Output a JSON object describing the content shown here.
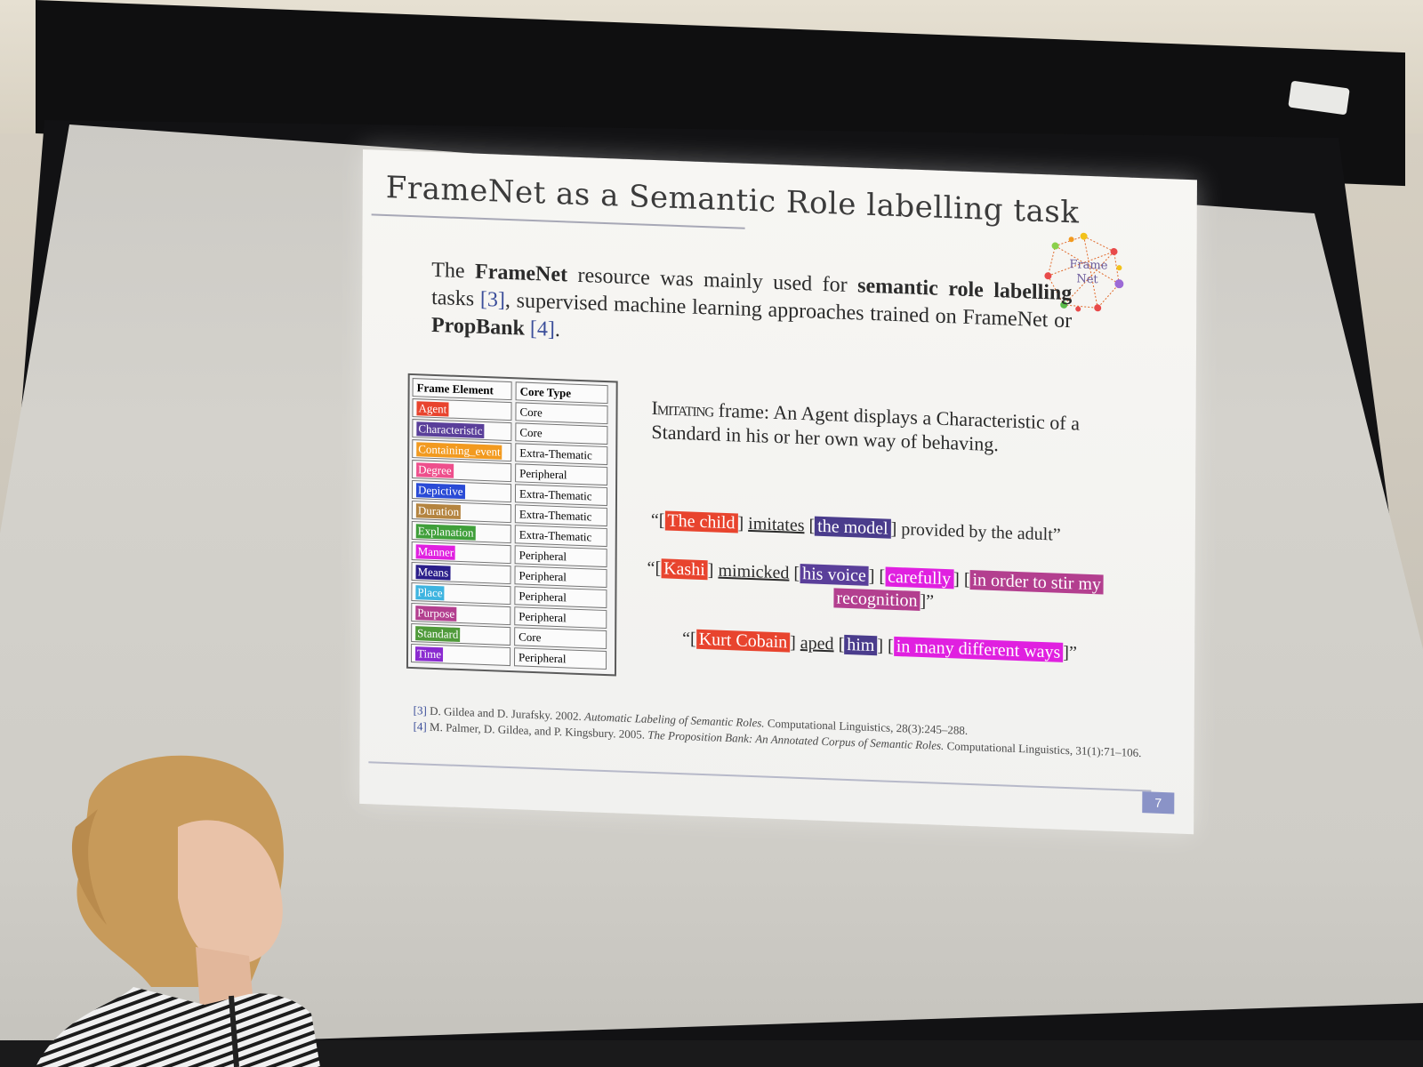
{
  "slide": {
    "title": "FrameNet as a Semantic Role labelling task",
    "logo_text_1": "Frame",
    "logo_text_2": "Net",
    "intro": {
      "t1": "The ",
      "b1": "FrameNet",
      "t2": " resource was mainly used for ",
      "b2": "semantic role labelling",
      "t3": " tasks ",
      "r1": "[3]",
      "t4": ", supervised machine learning approaches trained on FrameNet or ",
      "b3": "PropBank",
      "t5": " ",
      "r2": "[4]",
      "t6": "."
    },
    "table": {
      "headers": [
        "Frame Element",
        "Core Type"
      ],
      "rows": [
        {
          "fe": "Agent",
          "type": "Core",
          "color": "#e8442e"
        },
        {
          "fe": "Characteristic",
          "type": "Core",
          "color": "#5a3f9a"
        },
        {
          "fe": "Containing_event",
          "type": "Extra-Thematic",
          "color": "#f29a1f"
        },
        {
          "fe": "Degree",
          "type": "Peripheral",
          "color": "#ee4f8c"
        },
        {
          "fe": "Depictive",
          "type": "Extra-Thematic",
          "color": "#2a4bd6"
        },
        {
          "fe": "Duration",
          "type": "Extra-Thematic",
          "color": "#b48440"
        },
        {
          "fe": "Explanation",
          "type": "Extra-Thematic",
          "color": "#3f9f3a"
        },
        {
          "fe": "Manner",
          "type": "Peripheral",
          "color": "#e020e0"
        },
        {
          "fe": "Means",
          "type": "Peripheral",
          "color": "#2a1e8a"
        },
        {
          "fe": "Place",
          "type": "Peripheral",
          "color": "#3eb4e0"
        },
        {
          "fe": "Purpose",
          "type": "Peripheral",
          "color": "#b33f8f"
        },
        {
          "fe": "Standard",
          "type": "Core",
          "color": "#4f9a3a"
        },
        {
          "fe": "Time",
          "type": "Peripheral",
          "color": "#8a2ad0"
        }
      ]
    },
    "frame_def": {
      "name": "Imitating",
      "rest": " frame: An Agent displays a Characteristic of a Standard in his or her own way of behaving."
    },
    "examples": {
      "ex1": {
        "open": "“[",
        "agent": "The child",
        "mid1": "] ",
        "verb": "imitates",
        "mid2": " [",
        "standard": "the model",
        "close": "] provided by the adult”"
      },
      "ex2": {
        "open": "“[",
        "agent": "Kashi",
        "mid1": "] ",
        "verb": "mimicked",
        "mid2": " [",
        "characteristic": "his voice",
        "mid3": "] [",
        "manner": "carefully",
        "mid4": "] [",
        "purpose1": "in order to stir my",
        "purpose2": "recognition",
        "close": "]”"
      },
      "ex3": {
        "open": "“[",
        "agent": "Kurt Cobain",
        "mid1": "] ",
        "verb": "aped",
        "mid2": " [",
        "standard": "him",
        "mid3": "] [",
        "manner": "in many different ways",
        "close": "]”"
      }
    },
    "references": {
      "r3_num": "[3]",
      "r3_authors": " D. Gildea and D. Jurafsky. 2002. ",
      "r3_title": "Automatic Labeling of Semantic Roles.",
      "r3_venue": " Computational Linguistics, 28(3):245–288.",
      "r4_num": "[4]",
      "r4_authors": " M. Palmer, D. Gildea, and P. Kingsbury. 2005. ",
      "r4_title": "The Proposition Bank: An Annotated Corpus of Semantic Roles.",
      "r4_venue": " Computational Linguistics, 31(1):71–106."
    },
    "page_number": "7"
  },
  "colors": {
    "agent": "#e8442e",
    "characteristic": "#5a3f9a",
    "manner": "#e020e0",
    "purpose": "#b33f8f",
    "standard": "#4a3c8c",
    "ref_blue": "#3b4e9a"
  }
}
